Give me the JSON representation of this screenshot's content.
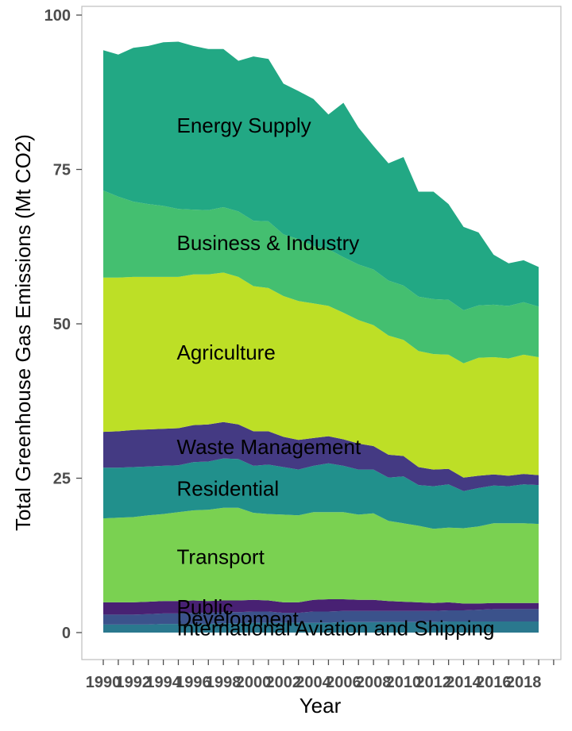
{
  "chart_data": {
    "type": "area",
    "stacked": true,
    "xlabel": "Year",
    "ylabel": "Total Greenhouse Gas Emissions (Mt CO2)",
    "xlim": [
      1989,
      2021
    ],
    "ylim": [
      0,
      100
    ],
    "x_ticks": [
      1990,
      1992,
      1994,
      1996,
      1998,
      2000,
      2002,
      2004,
      2006,
      2008,
      2010,
      2012,
      2014,
      2016,
      2018
    ],
    "y_ticks": [
      0,
      25,
      50,
      75,
      100
    ],
    "grid": false,
    "legend": "direct labels",
    "x": [
      1990,
      1991,
      1992,
      1993,
      1994,
      1995,
      1996,
      1997,
      1998,
      1999,
      2000,
      2001,
      2002,
      2003,
      2004,
      2005,
      2006,
      2007,
      2008,
      2009,
      2010,
      2011,
      2012,
      2013,
      2014,
      2015,
      2016,
      2017,
      2018,
      2019
    ],
    "series": [
      {
        "name": "International Aviation and Shipping",
        "color": "#2a788e",
        "label_year": 1995,
        "values": [
          1.3,
          1.3,
          1.3,
          1.3,
          1.4,
          1.4,
          1.4,
          1.4,
          1.5,
          1.5,
          1.6,
          1.6,
          1.6,
          1.6,
          1.6,
          1.6,
          1.7,
          1.7,
          1.7,
          1.7,
          1.7,
          1.7,
          1.7,
          1.8,
          1.8,
          1.8,
          1.8,
          1.8,
          1.8,
          1.8
        ]
      },
      {
        "name": "Development",
        "color": "#3b528b",
        "label_year": 1995,
        "values": [
          1.6,
          1.6,
          1.6,
          1.7,
          1.7,
          1.7,
          1.8,
          1.8,
          1.8,
          1.8,
          1.8,
          1.8,
          1.6,
          1.6,
          1.8,
          1.8,
          1.8,
          1.8,
          1.8,
          1.8,
          1.8,
          1.8,
          1.8,
          1.8,
          1.8,
          1.9,
          2.0,
          2.0,
          2.0,
          2.0
        ]
      },
      {
        "name": "Public",
        "color": "#482173",
        "label_year": 1995,
        "values": [
          2.0,
          2.0,
          2.0,
          2.0,
          2.0,
          2.0,
          2.0,
          1.9,
          1.9,
          1.9,
          1.9,
          1.8,
          1.7,
          1.7,
          1.9,
          2.0,
          1.9,
          1.8,
          1.8,
          1.6,
          1.5,
          1.4,
          1.3,
          1.3,
          1.1,
          1.0,
          1.0,
          1.0,
          1.0,
          1.0
        ]
      },
      {
        "name": "Transport",
        "color": "#7ad151",
        "label_year": 1995,
        "values": [
          13.6,
          13.7,
          13.8,
          14.0,
          14.1,
          14.4,
          14.6,
          14.8,
          15.0,
          15.0,
          14.1,
          14.0,
          14.2,
          14.1,
          14.2,
          14.1,
          14.1,
          13.8,
          14.0,
          13.0,
          12.7,
          12.4,
          12.0,
          12.1,
          12.2,
          12.5,
          12.9,
          12.9,
          12.9,
          12.8
        ]
      },
      {
        "name": "Residential",
        "color": "#21908c",
        "label_year": 1995,
        "values": [
          8.2,
          8.1,
          8.1,
          7.9,
          7.8,
          7.6,
          7.8,
          7.8,
          8.0,
          7.9,
          7.6,
          8.0,
          7.7,
          7.4,
          7.5,
          7.9,
          7.5,
          7.3,
          7.1,
          7.0,
          7.6,
          6.6,
          6.9,
          7.0,
          6.0,
          6.2,
          6.1,
          6.0,
          6.3,
          6.3
        ]
      },
      {
        "name": "Waste Management",
        "color": "#443a83",
        "label_year": 1995,
        "values": [
          5.8,
          5.9,
          6.0,
          6.0,
          6.0,
          6.0,
          6.0,
          6.0,
          5.9,
          5.6,
          5.6,
          5.4,
          4.9,
          4.8,
          4.5,
          4.4,
          4.3,
          4.2,
          3.8,
          3.7,
          3.3,
          2.9,
          2.7,
          2.5,
          2.2,
          2.0,
          1.8,
          1.7,
          1.7,
          1.6
        ]
      },
      {
        "name": "Agriculture",
        "color": "#bddf26",
        "label_year": 1995,
        "values": [
          25.0,
          24.9,
          24.8,
          24.7,
          24.6,
          24.5,
          24.4,
          24.3,
          24.2,
          23.9,
          23.5,
          23.2,
          22.8,
          22.5,
          21.8,
          21.1,
          20.5,
          20.0,
          19.6,
          19.3,
          18.8,
          18.8,
          18.7,
          18.5,
          18.5,
          19.1,
          19.0,
          19.0,
          19.3,
          19.1
        ]
      },
      {
        "name": "Business & Industry",
        "color": "#44bf70",
        "label_year": 1995,
        "values": [
          14.1,
          13.1,
          12.2,
          11.8,
          11.5,
          11.0,
          10.5,
          10.4,
          10.6,
          10.6,
          10.6,
          10.8,
          10.0,
          10.0,
          9.3,
          9.2,
          9.0,
          9.0,
          9.0,
          8.9,
          8.8,
          8.8,
          8.9,
          8.9,
          8.6,
          8.5,
          8.5,
          8.5,
          8.5,
          8.2
        ]
      },
      {
        "name": "Energy Supply",
        "color": "#22a884",
        "label_year": 1995,
        "values": [
          22.7,
          23.0,
          24.9,
          25.6,
          26.5,
          27.1,
          26.5,
          26.1,
          25.6,
          24.4,
          26.6,
          26.3,
          24.4,
          24.0,
          23.8,
          21.8,
          25.0,
          22.2,
          20.0,
          19.0,
          20.8,
          17.0,
          17.4,
          15.5,
          13.5,
          11.8,
          8.1,
          6.9,
          6.8,
          6.4
        ]
      }
    ]
  }
}
